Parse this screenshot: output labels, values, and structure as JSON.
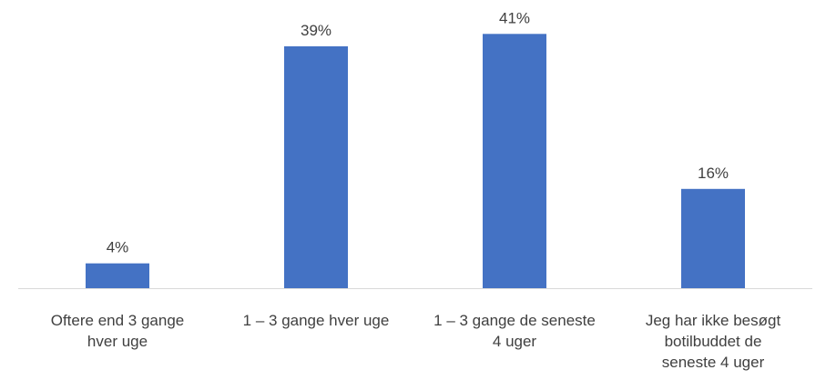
{
  "chart_data": {
    "type": "bar",
    "categories": [
      [
        "Oftere end 3 gange",
        "hver uge"
      ],
      [
        "1 – 3 gange hver uge"
      ],
      [
        "1 – 3 gange de seneste",
        "4 uger"
      ],
      [
        "Jeg har ikke besøgt",
        "botilbuddet de",
        "seneste 4 uger"
      ]
    ],
    "values": [
      4,
      39,
      41,
      16
    ],
    "data_labels": [
      "4%",
      "39%",
      "41%",
      "16%"
    ],
    "unit": "%",
    "ylim": [
      0,
      45
    ],
    "grid": false,
    "legend": "none",
    "bar_color": "#4472C4",
    "axis_color": "#D9D9D9"
  }
}
